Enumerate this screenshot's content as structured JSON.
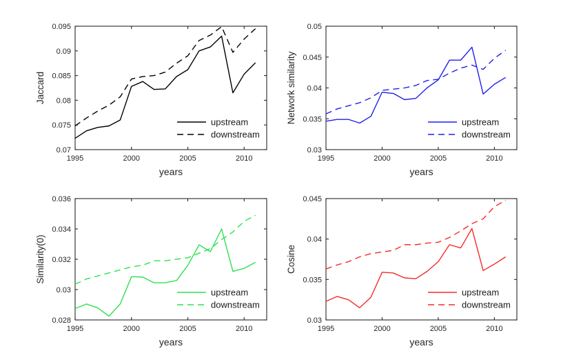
{
  "figure": {
    "background": "#ffffff",
    "axis_color": "#262626",
    "text_color": "#262626"
  },
  "chart_data": [
    {
      "type": "line",
      "title": "",
      "xlabel": "years",
      "ylabel": "Jaccard",
      "color": "#000000",
      "grid": false,
      "legend_position": "lower right",
      "x": [
        1995,
        1996,
        1997,
        1998,
        1999,
        2000,
        2001,
        2002,
        2003,
        2004,
        2005,
        2006,
        2007,
        2008,
        2009,
        2010,
        2011
      ],
      "xlim": [
        1995,
        2012
      ],
      "xticks": [
        1995,
        2000,
        2005,
        2010
      ],
      "xtick_labels": [
        "1995",
        "2000",
        "2005",
        "2010"
      ],
      "ylim": [
        0.07,
        0.095
      ],
      "yticks": [
        0.07,
        0.075,
        0.08,
        0.085,
        0.09,
        0.095
      ],
      "ytick_labels": [
        "0.07",
        "0.075",
        "0.08",
        "0.085",
        "0.09",
        "0.095"
      ],
      "series": [
        {
          "name": "upstream",
          "style": "solid",
          "values": [
            0.0723,
            0.0738,
            0.0745,
            0.0748,
            0.076,
            0.0828,
            0.0838,
            0.0822,
            0.0823,
            0.0848,
            0.0862,
            0.09,
            0.0908,
            0.093,
            0.0815,
            0.0853,
            0.0876
          ]
        },
        {
          "name": "downstream",
          "style": "dashed",
          "values": [
            0.0748,
            0.0764,
            0.0778,
            0.079,
            0.0807,
            0.0843,
            0.0848,
            0.085,
            0.0857,
            0.0875,
            0.089,
            0.0921,
            0.0932,
            0.0949,
            0.0897,
            0.0924,
            0.0945
          ]
        }
      ]
    },
    {
      "type": "line",
      "title": "",
      "xlabel": "years",
      "ylabel": "Network similarity",
      "color": "#1f1fef",
      "grid": false,
      "legend_position": "lower right",
      "x": [
        1995,
        1996,
        1997,
        1998,
        1999,
        2000,
        2001,
        2002,
        2003,
        2004,
        2005,
        2006,
        2007,
        2008,
        2009,
        2010,
        2011
      ],
      "xlim": [
        1995,
        2012
      ],
      "xticks": [
        1995,
        2000,
        2005,
        2010
      ],
      "xtick_labels": [
        "1995",
        "2000",
        "2005",
        "2010"
      ],
      "ylim": [
        0.03,
        0.05
      ],
      "yticks": [
        0.03,
        0.035,
        0.04,
        0.045,
        0.05
      ],
      "ytick_labels": [
        "0.03",
        "0.035",
        "0.04",
        "0.045",
        "0.05"
      ],
      "series": [
        {
          "name": "upstream",
          "style": "solid",
          "values": [
            0.0346,
            0.0349,
            0.0349,
            0.0343,
            0.0354,
            0.0393,
            0.0391,
            0.0381,
            0.0383,
            0.04,
            0.0413,
            0.0445,
            0.0445,
            0.0466,
            0.039,
            0.0406,
            0.0417
          ]
        },
        {
          "name": "downstream",
          "style": "dashed",
          "values": [
            0.0358,
            0.0366,
            0.0371,
            0.0376,
            0.0384,
            0.0396,
            0.0398,
            0.04,
            0.0404,
            0.0412,
            0.0414,
            0.0424,
            0.0432,
            0.0437,
            0.043,
            0.0448,
            0.0461
          ]
        }
      ]
    },
    {
      "type": "line",
      "title": "",
      "xlabel": "years",
      "ylabel": "Similarity(0)",
      "color": "#2ee04e",
      "grid": false,
      "legend_position": "lower right",
      "x": [
        1995,
        1996,
        1997,
        1998,
        1999,
        2000,
        2001,
        2002,
        2003,
        2004,
        2005,
        2006,
        2007,
        2008,
        2009,
        2010,
        2011
      ],
      "xlim": [
        1995,
        2012
      ],
      "xticks": [
        1995,
        2000,
        2005,
        2010
      ],
      "xtick_labels": [
        "1995",
        "2000",
        "2005",
        "2010"
      ],
      "ylim": [
        0.028,
        0.036
      ],
      "yticks": [
        0.028,
        0.03,
        0.032,
        0.034,
        0.036
      ],
      "ytick_labels": [
        "0.028",
        "0.03",
        "0.032",
        "0.034",
        "0.036"
      ],
      "series": [
        {
          "name": "upstream",
          "style": "solid",
          "values": [
            0.02875,
            0.02905,
            0.0288,
            0.02825,
            0.02905,
            0.03085,
            0.03083,
            0.03045,
            0.03045,
            0.0306,
            0.0316,
            0.03295,
            0.0325,
            0.034,
            0.0312,
            0.0314,
            0.0318
          ]
        },
        {
          "name": "downstream",
          "style": "dashed",
          "values": [
            0.03035,
            0.0307,
            0.0309,
            0.0311,
            0.0313,
            0.0315,
            0.0316,
            0.0319,
            0.0319,
            0.032,
            0.0321,
            0.0324,
            0.0327,
            0.0333,
            0.0338,
            0.0345,
            0.0349
          ]
        }
      ]
    },
    {
      "type": "line",
      "title": "",
      "xlabel": "years",
      "ylabel": "Cosine",
      "color": "#f32a2a",
      "grid": false,
      "legend_position": "lower right",
      "x": [
        1995,
        1996,
        1997,
        1998,
        1999,
        2000,
        2001,
        2002,
        2003,
        2004,
        2005,
        2006,
        2007,
        2008,
        2009,
        2010,
        2011
      ],
      "xlim": [
        1995,
        2012
      ],
      "xticks": [
        1995,
        2000,
        2005,
        2010
      ],
      "xtick_labels": [
        "1995",
        "2000",
        "2005",
        "2010"
      ],
      "ylim": [
        0.03,
        0.045
      ],
      "yticks": [
        0.03,
        0.035,
        0.04,
        0.045
      ],
      "ytick_labels": [
        "0.03",
        "0.035",
        "0.04",
        "0.045"
      ],
      "series": [
        {
          "name": "upstream",
          "style": "solid",
          "values": [
            0.0323,
            0.0329,
            0.0325,
            0.0315,
            0.0328,
            0.0359,
            0.0358,
            0.0352,
            0.0351,
            0.036,
            0.0372,
            0.0393,
            0.0389,
            0.0413,
            0.0361,
            0.0369,
            0.0378
          ]
        },
        {
          "name": "downstream",
          "style": "dashed",
          "values": [
            0.0363,
            0.0368,
            0.0372,
            0.0378,
            0.0382,
            0.0384,
            0.0386,
            0.0393,
            0.0393,
            0.0395,
            0.0396,
            0.0402,
            0.041,
            0.0419,
            0.0425,
            0.044,
            0.0448
          ]
        }
      ]
    }
  ]
}
